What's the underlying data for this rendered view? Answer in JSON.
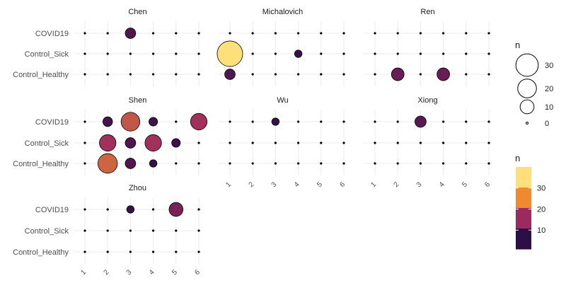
{
  "chart_data": {
    "type": "scatter",
    "facets": [
      "Chen",
      "Michalovich",
      "Ren",
      "Shen",
      "Wu",
      "Xiong",
      "Zhou"
    ],
    "x_ticks": [
      "1",
      "2",
      "3",
      "4",
      "5",
      "6"
    ],
    "y_categories": [
      "COVID19",
      "Control_Sick",
      "Control_Healthy"
    ],
    "points": {
      "Chen": {
        "COVID19": [
          0,
          0,
          5,
          0,
          0,
          0
        ],
        "Control_Sick": [
          0,
          0,
          0,
          0,
          0,
          0
        ],
        "Control_Healthy": [
          0,
          0,
          0,
          0,
          0,
          0
        ]
      },
      "Michalovich": {
        "COVID19": [
          0,
          0,
          0,
          0,
          0,
          0
        ],
        "Control_Sick": [
          40,
          0,
          0,
          2,
          0,
          0
        ],
        "Control_Healthy": [
          5,
          0,
          0,
          0,
          0,
          0
        ]
      },
      "Ren": {
        "COVID19": [
          0,
          0,
          0,
          0,
          0,
          0
        ],
        "Control_Sick": [
          0,
          0,
          0,
          0,
          0,
          0
        ],
        "Control_Healthy": [
          0,
          8,
          0,
          8,
          0,
          0
        ]
      },
      "Shen": {
        "COVID19": [
          0,
          4,
          20,
          3,
          0,
          15
        ],
        "Control_Sick": [
          0,
          15,
          5,
          15,
          3,
          0
        ],
        "Control_Healthy": [
          0,
          22,
          5,
          2,
          0,
          0
        ]
      },
      "Wu": {
        "COVID19": [
          0,
          0,
          2,
          0,
          0,
          0
        ],
        "Control_Sick": [
          0,
          0,
          0,
          0,
          0,
          0
        ],
        "Control_Healthy": [
          0,
          0,
          0,
          0,
          0,
          0
        ]
      },
      "Xiong": {
        "COVID19": [
          0,
          0,
          6,
          0,
          0,
          0
        ],
        "Control_Sick": [
          0,
          0,
          0,
          0,
          0,
          0
        ],
        "Control_Healthy": [
          0,
          0,
          0,
          0,
          0,
          0
        ]
      },
      "Zhou": {
        "COVID19": [
          0,
          0,
          2,
          0,
          10,
          0
        ],
        "Control_Sick": [
          0,
          0,
          0,
          0,
          0,
          0
        ],
        "Control_Healthy": [
          0,
          0,
          0,
          0,
          0,
          0
        ]
      }
    },
    "legend_size": {
      "title": "n",
      "breaks": [
        30,
        20,
        10,
        0
      ]
    },
    "legend_color": {
      "title": "n",
      "breaks": [
        30,
        20,
        10
      ],
      "range": [
        1,
        40
      ],
      "colors": [
        "#2d0f47",
        "#9a2a5f",
        "#ef8a2f",
        "#fde07a"
      ]
    },
    "legend_placement": "right",
    "grid": true
  }
}
